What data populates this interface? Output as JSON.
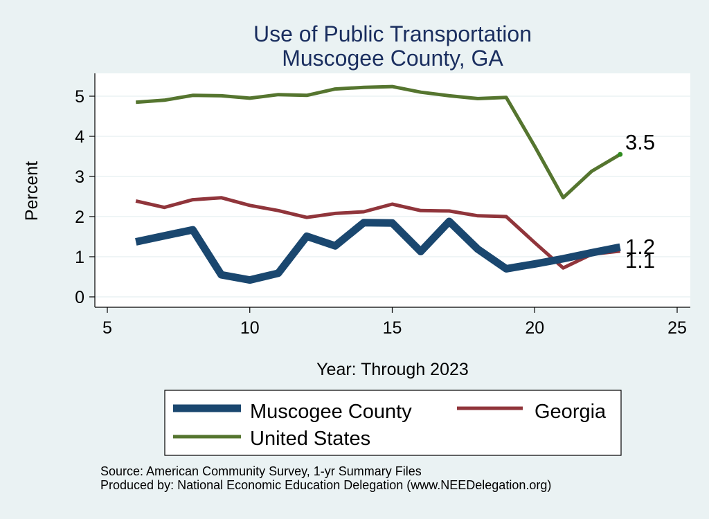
{
  "chart_data": {
    "type": "line",
    "title": [
      "Use of Public Transportation",
      "Muscogee County, GA"
    ],
    "xlabel": "Year: Through 2023",
    "ylabel": "Percent",
    "xlim": [
      5,
      25
    ],
    "ylim": [
      0,
      5.5
    ],
    "xticks": [
      5,
      10,
      15,
      20,
      25
    ],
    "yticks": [
      0,
      1,
      2,
      3,
      4,
      5
    ],
    "grid": true,
    "legend_position": "bottom",
    "x": [
      6,
      7,
      8,
      9,
      10,
      11,
      12,
      13,
      14,
      15,
      16,
      17,
      18,
      19,
      20,
      21,
      22,
      23
    ],
    "series": [
      {
        "name": "Muscogee County",
        "color": "#1a476f",
        "weight": "thick",
        "values": [
          1.37,
          1.52,
          1.67,
          0.55,
          0.42,
          0.59,
          1.51,
          1.27,
          1.85,
          1.84,
          1.13,
          1.88,
          1.19,
          0.7,
          0.82,
          0.95,
          1.1,
          1.24
        ],
        "end_label": "1.2"
      },
      {
        "name": "Georgia",
        "color": "#90353b",
        "weight": "medium",
        "values": [
          2.39,
          2.23,
          2.42,
          2.47,
          2.28,
          2.15,
          1.98,
          2.08,
          2.12,
          2.31,
          2.15,
          2.14,
          2.02,
          2.0,
          1.35,
          0.72,
          1.06,
          1.14
        ],
        "end_label": "1.1"
      },
      {
        "name": "United States",
        "color": "#55752f",
        "weight": "medium",
        "values": [
          4.85,
          4.9,
          5.02,
          5.01,
          4.95,
          5.04,
          5.02,
          5.18,
          5.22,
          5.24,
          5.1,
          5.01,
          4.94,
          4.97,
          3.75,
          2.47,
          3.13,
          3.55
        ],
        "end_label": "3.5"
      }
    ]
  },
  "footer": {
    "source": "Source: American Community Survey, 1-yr Summary Files",
    "produced": "Produced by: National Economic Education Delegation (www.NEEDelegation.org)"
  }
}
